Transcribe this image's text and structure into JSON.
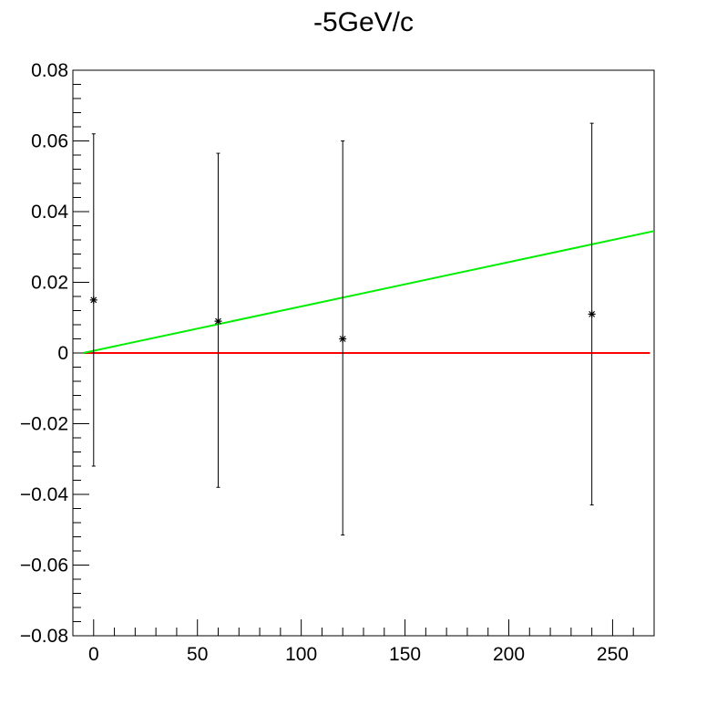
{
  "chart_data": {
    "type": "scatter",
    "title": "-5GeV/c",
    "xlabel": "",
    "ylabel": "",
    "xlim": [
      -10,
      270
    ],
    "ylim": [
      -0.08,
      0.08
    ],
    "grid": false,
    "x_ticks": [
      0,
      50,
      100,
      150,
      200,
      250
    ],
    "x_tick_labels": [
      "0",
      "50",
      "100",
      "150",
      "200",
      "250"
    ],
    "y_ticks": [
      -0.08,
      -0.06,
      -0.04,
      -0.02,
      0,
      0.02,
      0.04,
      0.06,
      0.08
    ],
    "y_tick_labels": [
      "−0.08",
      "−0.06",
      "−0.04",
      "−0.02",
      "0",
      "0.02",
      "0.04",
      "0.06",
      "0.08"
    ],
    "series": [
      {
        "marker": "star",
        "color": "#000000",
        "points": [
          {
            "x": 0,
            "y": 0.015,
            "err_low": -0.032,
            "err_high": 0.062
          },
          {
            "x": 60,
            "y": 0.009,
            "err_low": -0.038,
            "err_high": 0.0565
          },
          {
            "x": 120,
            "y": 0.004,
            "err_low": -0.0515,
            "err_high": 0.06
          },
          {
            "x": 240,
            "y": 0.011,
            "err_low": -0.043,
            "err_high": 0.065
          }
        ]
      }
    ],
    "lines": [
      {
        "color": "#ff0000",
        "x": [
          -5,
          268
        ],
        "y": [
          0,
          0
        ]
      },
      {
        "color": "#00ee00",
        "x": [
          -5,
          270
        ],
        "y": [
          0,
          0.0345
        ]
      }
    ]
  }
}
